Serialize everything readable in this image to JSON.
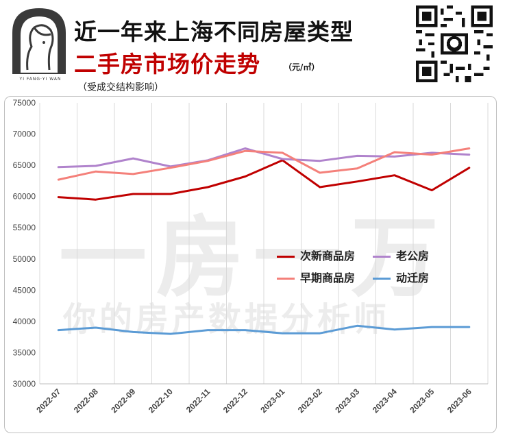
{
  "header": {
    "title_line1": "近一年来上海不同房屋类型",
    "title_line2": "二手房市场价走势",
    "unit": "（元/㎡）",
    "subtitle": "（受成交结构影响）",
    "brand": "YI FANG·YI WAN"
  },
  "watermark": {
    "line1": "一房一万",
    "line2": "你的房产数据分析师"
  },
  "colors": {
    "series1": "#c00000",
    "series2": "#b083cc",
    "series3": "#f4807a",
    "series4": "#5b9bd5",
    "title_red": "#c00000",
    "grid": "#d9d9d9"
  },
  "chart_data": {
    "type": "line",
    "x": [
      "2022-07",
      "2022-08",
      "2022-09",
      "2022-10",
      "2022-11",
      "2022-12",
      "2023-01",
      "2023-02",
      "2023-03",
      "2023-04",
      "2023-05",
      "2023-06"
    ],
    "ylim": [
      30000,
      75000
    ],
    "yticks": [
      "30000",
      "35000",
      "40000",
      "45000",
      "50000",
      "55000",
      "60000",
      "65000",
      "70000",
      "75000"
    ],
    "grid": "vertical",
    "legend_position": "center-right",
    "series": [
      {
        "name": "次新商品房",
        "color": "#c00000",
        "values": [
          59900,
          59500,
          60400,
          60400,
          61500,
          63200,
          65800,
          61500,
          62400,
          63400,
          61000,
          64600
        ]
      },
      {
        "name": "老公房",
        "color": "#b083cc",
        "values": [
          64700,
          64900,
          66100,
          64800,
          65800,
          67700,
          66000,
          65700,
          66500,
          66400,
          67000,
          66700
        ]
      },
      {
        "name": "早期商品房",
        "color": "#f4807a",
        "values": [
          62700,
          64000,
          63600,
          64600,
          65700,
          67300,
          67000,
          63800,
          64500,
          67100,
          66700,
          67700
        ]
      },
      {
        "name": "动迁房",
        "color": "#5b9bd5",
        "values": [
          38600,
          39000,
          38300,
          38000,
          38600,
          38600,
          38100,
          38100,
          39300,
          38700,
          39100,
          39100
        ]
      }
    ]
  }
}
